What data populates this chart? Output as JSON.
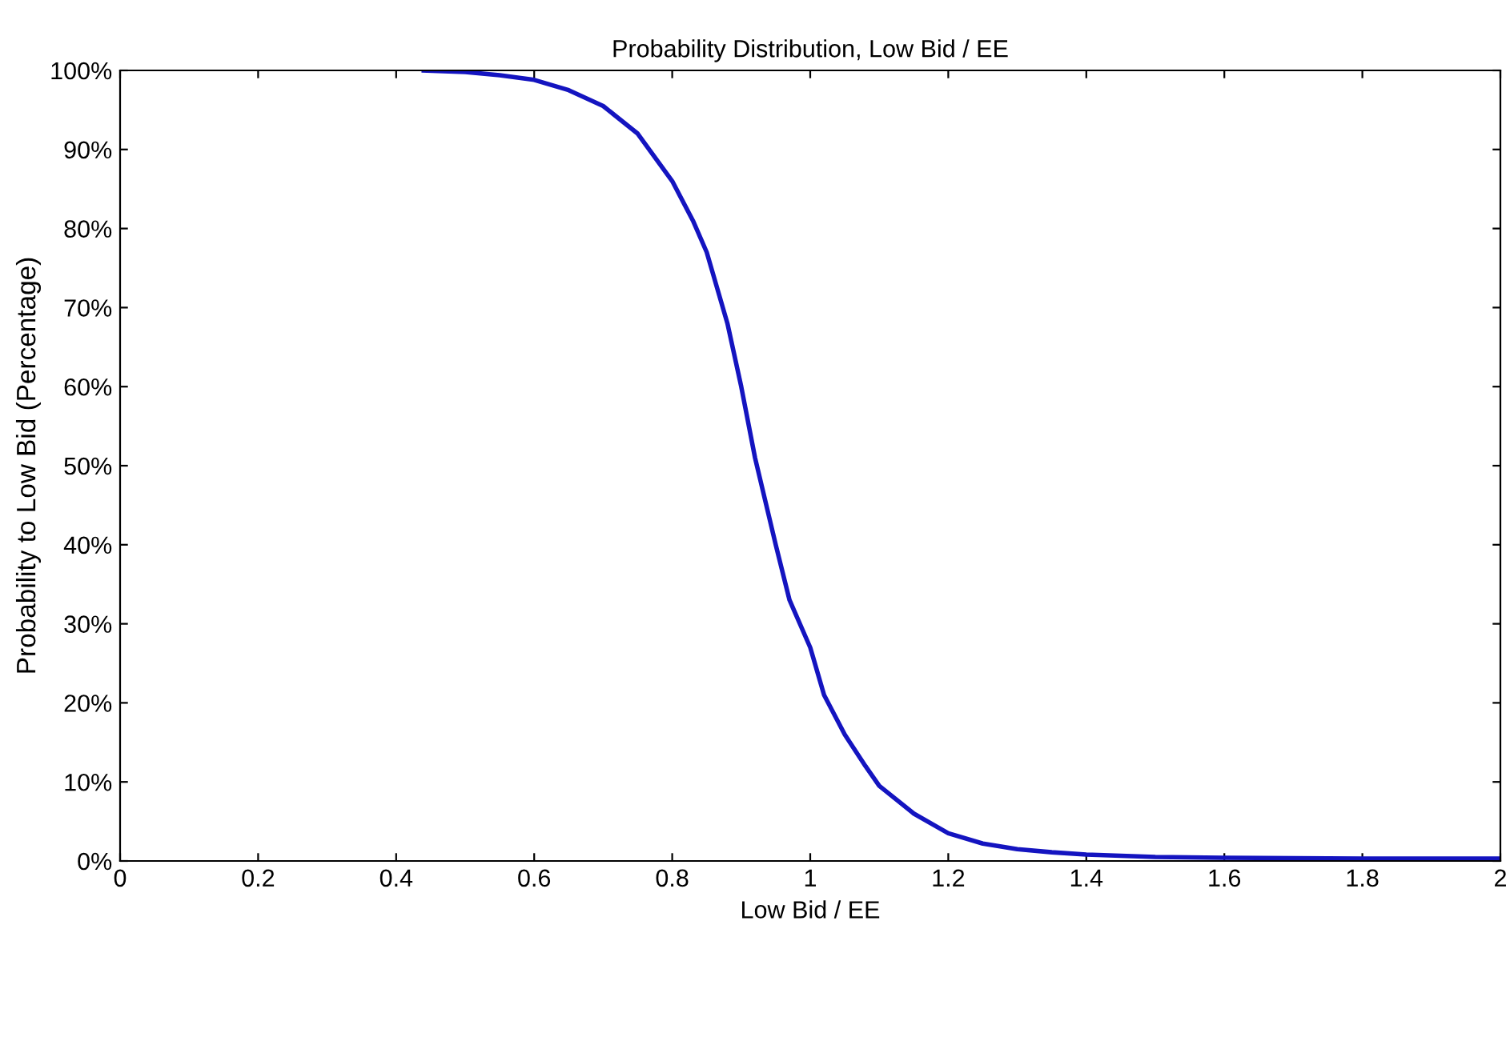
{
  "chart_data": {
    "type": "line",
    "title": "Probability Distribution, Low Bid / EE",
    "xlabel": "Low Bid / EE",
    "ylabel": "Probability to Low Bid (Percentage)",
    "series": [
      {
        "color": "#1414c0",
        "x": [
          0.44,
          0.5,
          0.55,
          0.6,
          0.65,
          0.7,
          0.75,
          0.8,
          0.83,
          0.85,
          0.88,
          0.9,
          0.92,
          0.95,
          0.97,
          1.0,
          1.02,
          1.05,
          1.08,
          1.1,
          1.15,
          1.2,
          1.25,
          1.3,
          1.35,
          1.4,
          1.5,
          1.6,
          1.8,
          2.0
        ],
        "values": [
          100,
          99.8,
          99.4,
          98.8,
          97.5,
          95.5,
          92,
          86,
          81,
          77,
          68,
          60,
          51,
          40,
          33,
          27,
          21,
          16,
          12,
          9.5,
          6,
          3.5,
          2.2,
          1.5,
          1.1,
          0.8,
          0.5,
          0.4,
          0.3,
          0.3
        ]
      }
    ],
    "xlim": [
      0,
      2
    ],
    "ylim": [
      0,
      100
    ],
    "xticks": [
      0,
      0.2,
      0.4,
      0.6,
      0.8,
      1,
      1.2,
      1.4,
      1.6,
      1.8,
      2
    ],
    "yticks": [
      {
        "value": 0,
        "label": "0%"
      },
      {
        "value": 10,
        "label": "10%"
      },
      {
        "value": 20,
        "label": "20%"
      },
      {
        "value": 30,
        "label": "30%"
      },
      {
        "value": 40,
        "label": "40%"
      },
      {
        "value": 50,
        "label": "50%"
      },
      {
        "value": 60,
        "label": "60%"
      },
      {
        "value": 70,
        "label": "70%"
      },
      {
        "value": 80,
        "label": "80%"
      },
      {
        "value": 90,
        "label": "90%"
      },
      {
        "value": 100,
        "label": "100%"
      }
    ],
    "grid": false,
    "line_style": "solid",
    "marker": "none"
  }
}
